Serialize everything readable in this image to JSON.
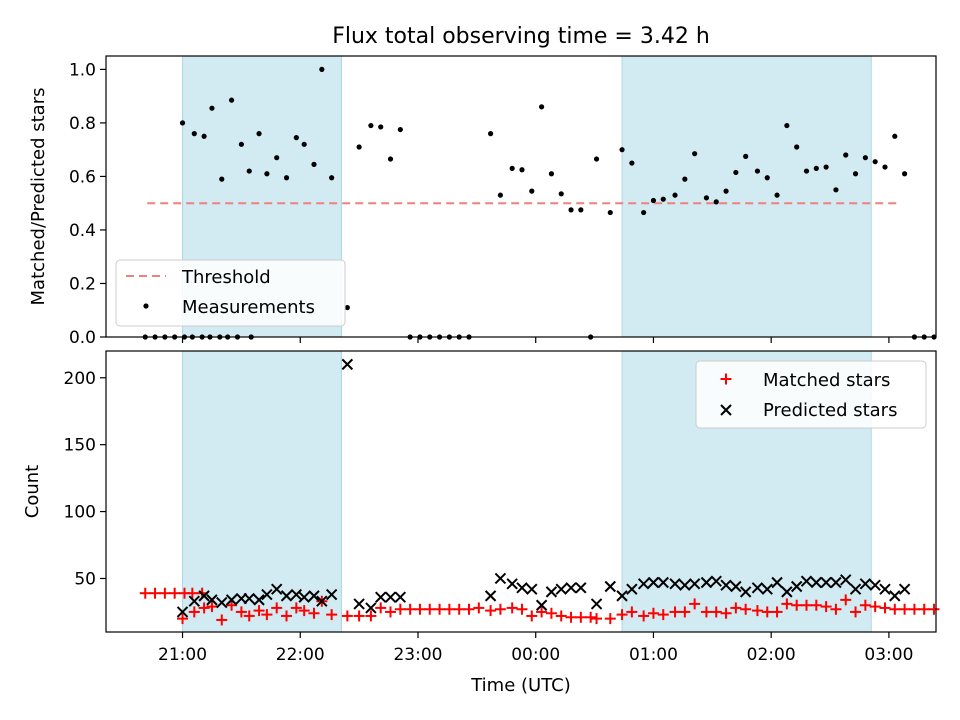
{
  "title": "Flux total observing time = 3.42 h",
  "colors": {
    "shade": "#add8e6",
    "threshold": "#f08080",
    "matched": "#ff0000",
    "predicted": "#000000",
    "measurement": "#000000"
  },
  "chart_data": [
    {
      "type": "scatter",
      "panel": "top",
      "title": "Flux total observing time = 3.42 h",
      "xlabel": "",
      "ylabel": "Matched/Predicted stars",
      "xlim": [
        "20:21",
        "03:24"
      ],
      "ylim": [
        0,
        1.05
      ],
      "yticks": [
        0.0,
        0.2,
        0.4,
        0.6,
        0.8,
        1.0
      ],
      "ytick_labels": [
        "0.0",
        "0.2",
        "0.4",
        "0.6",
        "0.8",
        "1.0"
      ],
      "shaded_intervals": [
        [
          "21:00",
          "22:21"
        ],
        [
          "00:44",
          "02:51"
        ]
      ],
      "threshold": {
        "name": "Threshold",
        "y": 0.5,
        "x_start": "20:42",
        "x_end": "03:06",
        "style": "dashed"
      },
      "legend": {
        "placement": "lower-left",
        "entries": [
          "Threshold",
          "Measurements"
        ]
      },
      "series": [
        {
          "name": "Measurements",
          "marker": "dot",
          "points": [
            [
              "20:41",
              0
            ],
            [
              "20:46",
              0
            ],
            [
              "20:51",
              0
            ],
            [
              "20:56",
              0
            ],
            [
              "21:01",
              0
            ],
            [
              "21:05",
              0
            ],
            [
              "21:10",
              0
            ],
            [
              "21:14",
              0
            ],
            [
              "21:19",
              0
            ],
            [
              "21:23",
              0
            ],
            [
              "21:28",
              0
            ],
            [
              "21:35",
              0
            ],
            [
              "21:00",
              0.8
            ],
            [
              "21:06",
              0.76
            ],
            [
              "21:11",
              0.75
            ],
            [
              "21:15",
              0.855
            ],
            [
              "21:20",
              0.59
            ],
            [
              "21:25",
              0.885
            ],
            [
              "21:30",
              0.72
            ],
            [
              "21:34",
              0.62
            ],
            [
              "21:39",
              0.76
            ],
            [
              "21:43",
              0.61
            ],
            [
              "21:48",
              0.67
            ],
            [
              "21:53",
              0.595
            ],
            [
              "21:58",
              0.745
            ],
            [
              "22:02",
              0.72
            ],
            [
              "22:07",
              0.645
            ],
            [
              "22:11",
              1.0
            ],
            [
              "22:16",
              0.595
            ],
            [
              "22:24",
              0.11
            ],
            [
              "22:30",
              0.71
            ],
            [
              "22:36",
              0.79
            ],
            [
              "22:41",
              0.785
            ],
            [
              "22:46",
              0.665
            ],
            [
              "22:51",
              0.775
            ],
            [
              "22:56",
              0
            ],
            [
              "23:01",
              0
            ],
            [
              "23:06",
              0
            ],
            [
              "23:11",
              0
            ],
            [
              "23:16",
              0
            ],
            [
              "23:21",
              0
            ],
            [
              "23:26",
              0
            ],
            [
              "23:37",
              0.76
            ],
            [
              "23:42",
              0.53
            ],
            [
              "23:48",
              0.63
            ],
            [
              "23:53",
              0.625
            ],
            [
              "23:58",
              0.545
            ],
            [
              "00:03",
              0.86
            ],
            [
              "00:08",
              0.61
            ],
            [
              "00:13",
              0.535
            ],
            [
              "00:18",
              0.475
            ],
            [
              "00:23",
              0.475
            ],
            [
              "00:28",
              0
            ],
            [
              "00:31",
              0.665
            ],
            [
              "00:38",
              0.465
            ],
            [
              "00:44",
              0.7
            ],
            [
              "00:49",
              0.65
            ],
            [
              "00:55",
              0.465
            ],
            [
              "01:00",
              0.51
            ],
            [
              "01:05",
              0.515
            ],
            [
              "01:11",
              0.53
            ],
            [
              "01:16",
              0.59
            ],
            [
              "01:21",
              0.685
            ],
            [
              "01:27",
              0.52
            ],
            [
              "01:32",
              0.505
            ],
            [
              "01:37",
              0.545
            ],
            [
              "01:42",
              0.615
            ],
            [
              "01:47",
              0.675
            ],
            [
              "01:53",
              0.62
            ],
            [
              "01:58",
              0.595
            ],
            [
              "02:03",
              0.53
            ],
            [
              "02:08",
              0.79
            ],
            [
              "02:13",
              0.71
            ],
            [
              "02:18",
              0.62
            ],
            [
              "02:23",
              0.63
            ],
            [
              "02:28",
              0.635
            ],
            [
              "02:33",
              0.55
            ],
            [
              "02:38",
              0.68
            ],
            [
              "02:43",
              0.61
            ],
            [
              "02:48",
              0.67
            ],
            [
              "02:53",
              0.655
            ],
            [
              "02:58",
              0.635
            ],
            [
              "03:03",
              0.75
            ],
            [
              "03:08",
              0.61
            ],
            [
              "03:13",
              0
            ],
            [
              "03:18",
              0
            ],
            [
              "03:23",
              0
            ]
          ]
        }
      ]
    },
    {
      "type": "scatter",
      "panel": "bottom",
      "xlabel": "Time (UTC)",
      "ylabel": "Count",
      "xlim": [
        "20:21",
        "03:24"
      ],
      "ylim": [
        10,
        220
      ],
      "yticks": [
        50,
        100,
        150,
        200
      ],
      "ytick_labels": [
        "50",
        "100",
        "150",
        "200"
      ],
      "xticks": [
        "21:00",
        "22:00",
        "23:00",
        "00:00",
        "01:00",
        "02:00",
        "03:00"
      ],
      "shaded_intervals": [
        [
          "21:00",
          "22:21"
        ],
        [
          "00:44",
          "02:51"
        ]
      ],
      "legend": {
        "placement": "upper-right",
        "entries": [
          "Matched stars",
          "Predicted stars"
        ]
      },
      "series": [
        {
          "name": "Matched stars",
          "marker": "plus",
          "points": [
            [
              "20:41",
              39
            ],
            [
              "20:46",
              39
            ],
            [
              "20:51",
              39
            ],
            [
              "20:56",
              39
            ],
            [
              "21:01",
              39
            ],
            [
              "21:05",
              39
            ],
            [
              "21:10",
              39
            ],
            [
              "21:00",
              20
            ],
            [
              "21:06",
              25
            ],
            [
              "21:11",
              28
            ],
            [
              "21:15",
              29
            ],
            [
              "21:20",
              19
            ],
            [
              "21:25",
              30
            ],
            [
              "21:30",
              25
            ],
            [
              "21:34",
              22
            ],
            [
              "21:39",
              26
            ],
            [
              "21:43",
              23
            ],
            [
              "21:48",
              28
            ],
            [
              "21:53",
              22
            ],
            [
              "21:58",
              28
            ],
            [
              "22:02",
              26
            ],
            [
              "22:07",
              24
            ],
            [
              "22:11",
              33
            ],
            [
              "22:16",
              23
            ],
            [
              "22:24",
              22
            ],
            [
              "22:30",
              22
            ],
            [
              "22:36",
              22
            ],
            [
              "22:41",
              28
            ],
            [
              "22:46",
              25
            ],
            [
              "22:51",
              27
            ],
            [
              "22:56",
              27
            ],
            [
              "23:01",
              27
            ],
            [
              "23:06",
              27
            ],
            [
              "23:11",
              27
            ],
            [
              "23:16",
              27
            ],
            [
              "23:21",
              27
            ],
            [
              "23:26",
              27
            ],
            [
              "23:31",
              28
            ],
            [
              "23:37",
              26
            ],
            [
              "23:42",
              27
            ],
            [
              "23:48",
              28
            ],
            [
              "23:53",
              27
            ],
            [
              "23:58",
              22
            ],
            [
              "00:03",
              25
            ],
            [
              "00:08",
              24
            ],
            [
              "00:13",
              22
            ],
            [
              "00:18",
              21
            ],
            [
              "00:23",
              21
            ],
            [
              "00:28",
              21
            ],
            [
              "00:31",
              20
            ],
            [
              "00:38",
              20
            ],
            [
              "00:44",
              23
            ],
            [
              "00:49",
              25
            ],
            [
              "00:55",
              22
            ],
            [
              "01:00",
              24
            ],
            [
              "01:05",
              23
            ],
            [
              "01:11",
              25
            ],
            [
              "01:16",
              25
            ],
            [
              "01:21",
              31
            ],
            [
              "01:27",
              25
            ],
            [
              "01:32",
              25
            ],
            [
              "01:37",
              24
            ],
            [
              "01:42",
              28
            ],
            [
              "01:47",
              27
            ],
            [
              "01:53",
              26
            ],
            [
              "01:58",
              25
            ],
            [
              "02:03",
              25
            ],
            [
              "02:08",
              31
            ],
            [
              "02:13",
              30
            ],
            [
              "02:18",
              30
            ],
            [
              "02:23",
              30
            ],
            [
              "02:28",
              29
            ],
            [
              "02:33",
              27
            ],
            [
              "02:38",
              34
            ],
            [
              "02:43",
              25
            ],
            [
              "02:48",
              30
            ],
            [
              "02:53",
              29
            ],
            [
              "02:58",
              28
            ],
            [
              "03:03",
              27
            ],
            [
              "03:08",
              27
            ],
            [
              "03:13",
              27
            ],
            [
              "03:18",
              27
            ],
            [
              "03:23",
              27
            ]
          ]
        },
        {
          "name": "Predicted stars",
          "marker": "x",
          "points": [
            [
              "21:00",
              25
            ],
            [
              "21:06",
              33
            ],
            [
              "21:11",
              37
            ],
            [
              "21:15",
              34
            ],
            [
              "21:20",
              32
            ],
            [
              "21:25",
              34
            ],
            [
              "21:30",
              35
            ],
            [
              "21:34",
              35
            ],
            [
              "21:39",
              34
            ],
            [
              "21:43",
              38
            ],
            [
              "21:48",
              42
            ],
            [
              "21:53",
              37
            ],
            [
              "21:58",
              38
            ],
            [
              "22:02",
              36
            ],
            [
              "22:07",
              37
            ],
            [
              "22:11",
              33
            ],
            [
              "22:16",
              38
            ],
            [
              "22:24",
              210
            ],
            [
              "22:30",
              31
            ],
            [
              "22:36",
              28
            ],
            [
              "22:41",
              36
            ],
            [
              "22:46",
              36
            ],
            [
              "22:51",
              36
            ],
            [
              "23:37",
              37
            ],
            [
              "23:42",
              50
            ],
            [
              "23:48",
              46
            ],
            [
              "23:53",
              43
            ],
            [
              "23:58",
              42
            ],
            [
              "00:03",
              30
            ],
            [
              "00:08",
              40
            ],
            [
              "00:13",
              42
            ],
            [
              "00:18",
              43
            ],
            [
              "00:23",
              43
            ],
            [
              "00:31",
              31
            ],
            [
              "00:38",
              44
            ],
            [
              "00:44",
              37
            ],
            [
              "00:49",
              42
            ],
            [
              "00:55",
              46
            ],
            [
              "01:00",
              47
            ],
            [
              "01:05",
              47
            ],
            [
              "01:11",
              46
            ],
            [
              "01:16",
              45
            ],
            [
              "01:21",
              46
            ],
            [
              "01:27",
              47
            ],
            [
              "01:32",
              48
            ],
            [
              "01:37",
              45
            ],
            [
              "01:42",
              44
            ],
            [
              "01:47",
              40
            ],
            [
              "01:53",
              43
            ],
            [
              "01:58",
              42
            ],
            [
              "02:03",
              47
            ],
            [
              "02:08",
              40
            ],
            [
              "02:13",
              44
            ],
            [
              "02:18",
              48
            ],
            [
              "02:23",
              47
            ],
            [
              "02:28",
              47
            ],
            [
              "02:33",
              47
            ],
            [
              "02:38",
              49
            ],
            [
              "02:43",
              42
            ],
            [
              "02:48",
              46
            ],
            [
              "02:53",
              45
            ],
            [
              "02:58",
              42
            ],
            [
              "03:03",
              37
            ],
            [
              "03:08",
              42
            ]
          ]
        }
      ]
    }
  ]
}
